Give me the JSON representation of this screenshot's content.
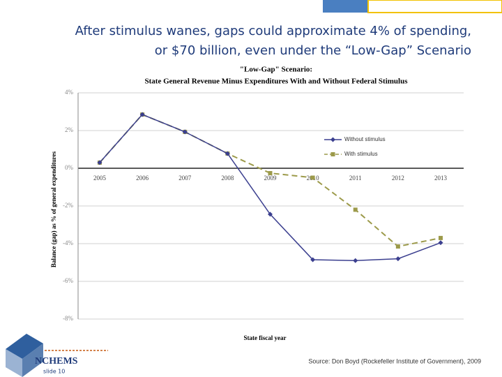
{
  "slide": {
    "title_lines": [
      "After stimulus wanes, gaps could approximate 4% of spending,",
      "or $70 billion, even under the “Low-Gap” Scenario"
    ],
    "logo": "NCHEMS",
    "slide_number": "slide 10",
    "source": "Source: Don Boyd (Rockefeller Institute of Government), 2009"
  },
  "chart_data": {
    "type": "line",
    "title": [
      "\"Low-Gap\" Scenario:",
      "State General Revenue Minus Expenditures With and Without Federal Stimulus"
    ],
    "x_label": "State fiscal year",
    "y_label": "Balance (gap) as % of general expenditures",
    "categories": [
      "2005",
      "2006",
      "2007",
      "2008",
      "2009",
      "2010",
      "2011",
      "2012",
      "2013"
    ],
    "series": [
      {
        "name": "Without stimulus",
        "color": "#3b3f8f",
        "marker": "diamond",
        "dashed": false,
        "values": [
          0.3,
          2.85,
          1.93,
          0.78,
          -2.44,
          -4.85,
          -4.9,
          -4.8,
          -3.95
        ]
      },
      {
        "name": "With stimulus",
        "color": "#9c9a4a",
        "marker": "square",
        "dashed": true,
        "values": [
          0.3,
          2.85,
          1.93,
          0.78,
          -0.26,
          -0.5,
          -2.2,
          -4.15,
          -3.7
        ]
      }
    ],
    "ylim": [
      -8,
      4
    ],
    "yticks": [
      {
        "value": 4,
        "label": "4%"
      },
      {
        "value": 2,
        "label": "2%"
      },
      {
        "value": 0,
        "label": "0%"
      },
      {
        "value": -2,
        "label": "-2%"
      },
      {
        "value": -4,
        "label": "-4%"
      },
      {
        "value": -6,
        "label": "-6%"
      },
      {
        "value": -8,
        "label": "-8%"
      }
    ],
    "grid": true
  }
}
